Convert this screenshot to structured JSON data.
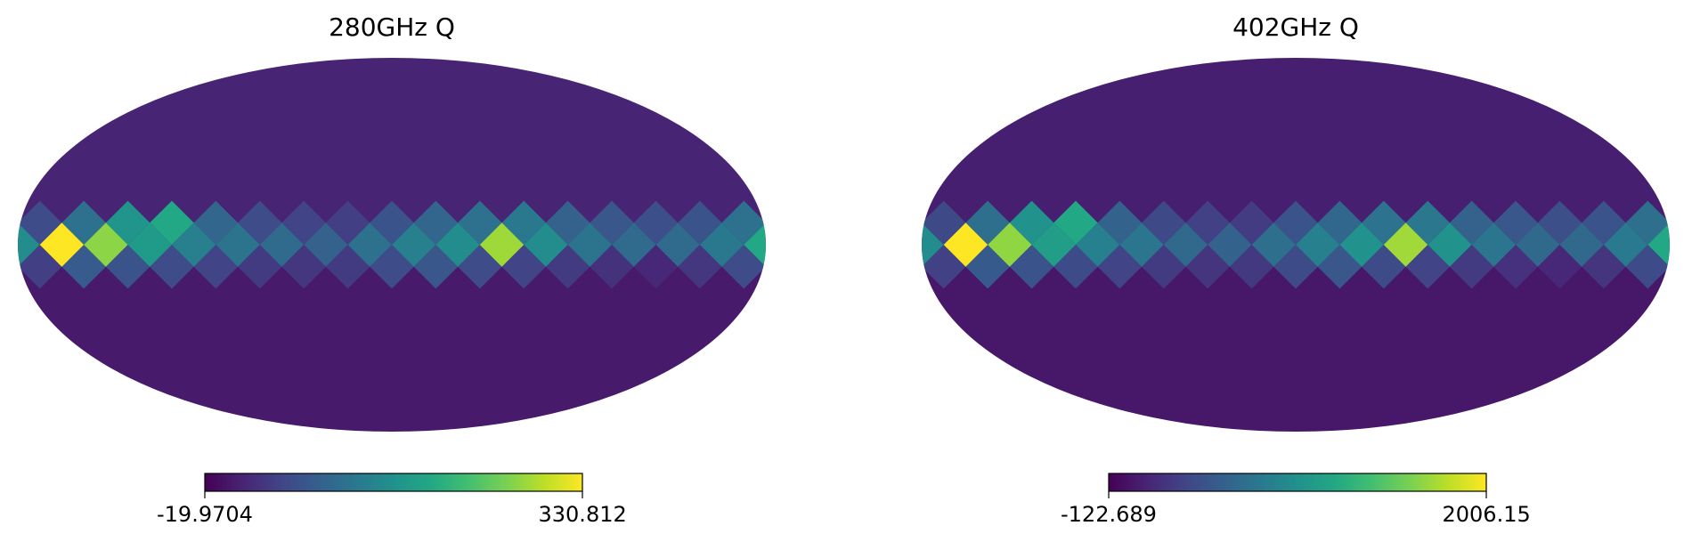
{
  "chart_data": [
    {
      "type": "heatmap",
      "projection": "mollweide",
      "title": "280GHz Q",
      "colormap": "viridis",
      "colorbar": {
        "min": -19.9704,
        "max": 330.812,
        "min_label": "-19.9704",
        "max_label": "330.812"
      },
      "grid": false,
      "equator_values": [
        150,
        330.812,
        270,
        170,
        130,
        115,
        100,
        90,
        110,
        130,
        150,
        280,
        150,
        115,
        100,
        100,
        120,
        190
      ],
      "upper_ring_values": [
        60,
        110,
        160,
        190,
        95,
        60,
        50,
        45,
        70,
        95,
        110,
        120,
        90,
        75,
        65,
        70,
        110,
        140
      ],
      "lower_ring_values": [
        45,
        80,
        70,
        60,
        50,
        40,
        35,
        40,
        60,
        75,
        60,
        50,
        40,
        30,
        20,
        35,
        60,
        90
      ],
      "polar_cap_north": 15,
      "polar_cap_south": 5
    },
    {
      "type": "heatmap",
      "projection": "mollweide",
      "title": "402GHz Q",
      "colormap": "viridis",
      "colorbar": {
        "min": -122.689,
        "max": 2006.15,
        "min_label": "-122.689",
        "max_label": "2006.15"
      },
      "grid": false,
      "equator_values": [
        900,
        2006.15,
        1650,
        1050,
        800,
        700,
        600,
        550,
        650,
        800,
        950,
        1700,
        950,
        700,
        600,
        600,
        750,
        1150
      ],
      "upper_ring_values": [
        350,
        650,
        950,
        1150,
        550,
        350,
        280,
        250,
        420,
        580,
        680,
        720,
        540,
        450,
        390,
        420,
        650,
        850
      ],
      "lower_ring_values": [
        280,
        480,
        420,
        360,
        300,
        240,
        200,
        230,
        360,
        450,
        360,
        300,
        240,
        180,
        120,
        200,
        360,
        540
      ],
      "polar_cap_north": 60,
      "polar_cap_south": 20
    }
  ]
}
